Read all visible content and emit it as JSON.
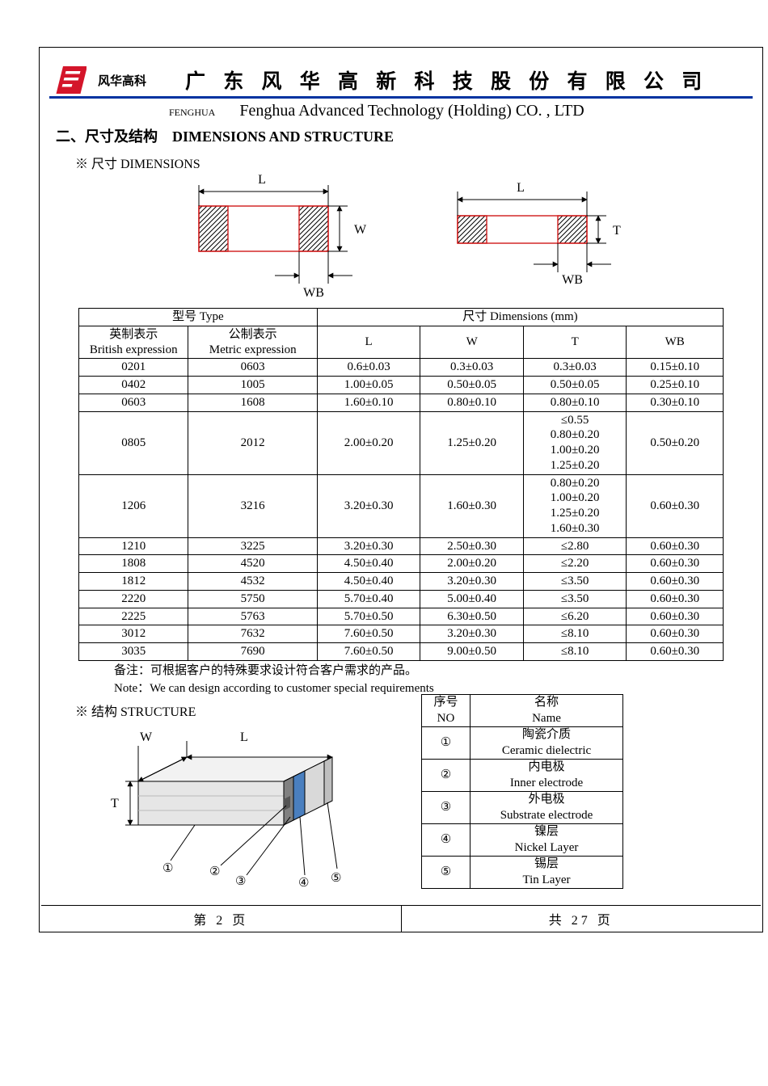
{
  "header": {
    "brand_small": "风华高科",
    "cn_title": "广 东 风 华 高 新 科 技 股 份 有 限 公 司",
    "sub_small": "FENGHUA",
    "sub_en": "Fenghua Advanced Technology (Holding) CO. , LTD",
    "blue_rule_color": "#0033a0",
    "logo_main_color": "#d4152a"
  },
  "section": {
    "title_cn": "二、尺寸及结构",
    "title_en": "DIMENSIONS AND STRUCTURE",
    "dims_label": "※ 尺寸 DIMENSIONS",
    "struct_label": "※ 结构 STRUCTURE"
  },
  "figure_labels": {
    "L": "L",
    "W": "W",
    "T": "T",
    "WB": "WB"
  },
  "dim_table": {
    "head": {
      "type_title": "型号 Type",
      "dims_title": "尺寸    Dimensions     (mm)",
      "brit_cn": "英制表示",
      "brit_en": "British expression",
      "metric_cn": "公制表示",
      "metric_en": "Metric expression",
      "L": "L",
      "W": "W",
      "T": "T",
      "WB": "WB"
    },
    "rows": [
      {
        "brit": "0201",
        "metric": "0603",
        "L": "0.6±0.03",
        "W": "0.3±0.03",
        "T": "0.3±0.03",
        "WB": "0.15±0.10"
      },
      {
        "brit": "0402",
        "metric": "1005",
        "L": "1.00±0.05",
        "W": "0.50±0.05",
        "T": "0.50±0.05",
        "WB": "0.25±0.10"
      },
      {
        "brit": "0603",
        "metric": "1608",
        "L": "1.60±0.10",
        "W": "0.80±0.10",
        "T": "0.80±0.10",
        "WB": "0.30±0.10"
      },
      {
        "brit": "0805",
        "metric": "2012",
        "L": "2.00±0.20",
        "W": "1.25±0.20",
        "T": "≤0.55\n0.80±0.20\n1.00±0.20\n1.25±0.20",
        "WB": "0.50±0.20"
      },
      {
        "brit": "1206",
        "metric": "3216",
        "L": "3.20±0.30",
        "W": "1.60±0.30",
        "T": "0.80±0.20\n1.00±0.20\n1.25±0.20\n1.60±0.30",
        "WB": "0.60±0.30"
      },
      {
        "brit": "1210",
        "metric": "3225",
        "L": "3.20±0.30",
        "W": "2.50±0.30",
        "T": "≤2.80",
        "WB": "0.60±0.30"
      },
      {
        "brit": "1808",
        "metric": "4520",
        "L": "4.50±0.40",
        "W": "2.00±0.20",
        "T": "≤2.20",
        "WB": "0.60±0.30"
      },
      {
        "brit": "1812",
        "metric": "4532",
        "L": "4.50±0.40",
        "W": "3.20±0.30",
        "T": "≤3.50",
        "WB": "0.60±0.30"
      },
      {
        "brit": "2220",
        "metric": "5750",
        "L": "5.70±0.40",
        "W": "5.00±0.40",
        "T": "≤3.50",
        "WB": "0.60±0.30"
      },
      {
        "brit": "2225",
        "metric": "5763",
        "L": "5.70±0.50",
        "W": "6.30±0.50",
        "T": "≤6.20",
        "WB": "0.60±0.30"
      },
      {
        "brit": "3012",
        "metric": "7632",
        "L": "7.60±0.50",
        "W": "3.20±0.30",
        "T": "≤8.10",
        "WB": "0.60±0.30"
      },
      {
        "brit": "3035",
        "metric": "7690",
        "L": "7.60±0.50",
        "W": "9.00±0.50",
        "T": "≤8.10",
        "WB": "0.60±0.30"
      }
    ]
  },
  "notes": {
    "cn": "备注：可根据客户的特殊要求设计符合客户需求的产品。",
    "en": "Note：We can design according to customer special requirements"
  },
  "struct_table": {
    "head": {
      "no_cn": "序号",
      "no_en": "NO",
      "name_cn": "名称",
      "name_en": "Name"
    },
    "rows": [
      {
        "no": "①",
        "cn": "陶瓷介质",
        "en": "Ceramic   dielectric"
      },
      {
        "no": "②",
        "cn": "内电极",
        "en": "Inner   electrode"
      },
      {
        "no": "③",
        "cn": "外电极",
        "en": "Substrate   electrode"
      },
      {
        "no": "④",
        "cn": "镍层",
        "en": "Nickel Layer"
      },
      {
        "no": "⑤",
        "cn": "锡层",
        "en": "Tin Layer"
      }
    ]
  },
  "footer": {
    "left": "第   2   页",
    "right": "共  27  页"
  },
  "colors": {
    "page_border": "#000000",
    "hatch_stroke": "#000000",
    "red_border": "#d01a1a",
    "struct_body": "#e6e6e6",
    "struct_dark": "#808080",
    "struct_blue": "#4a7fbf"
  }
}
